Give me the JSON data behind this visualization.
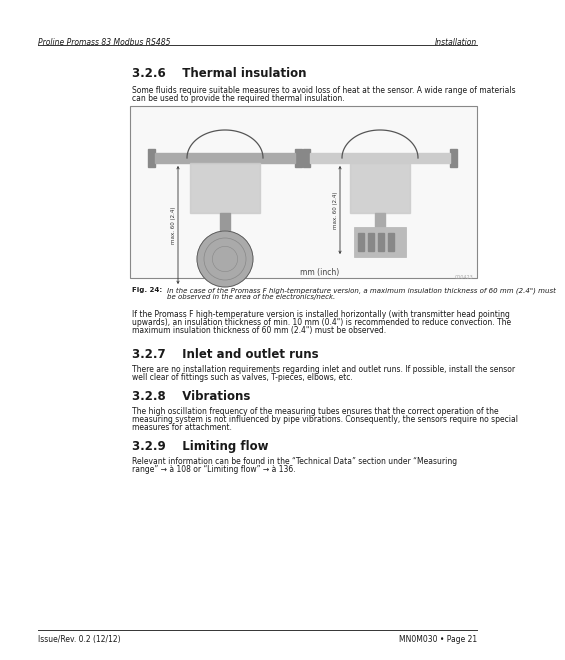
{
  "page_bg": "#ffffff",
  "header_left": "Proline Promass 83 Modbus RS485",
  "header_right": "Installation",
  "footer_left": "Issue/Rev. 0.2 (12/12)",
  "footer_right": "MN0M030 • Page 21",
  "section_326_num": "3.2.6",
  "section_326_title": "    Thermal insulation",
  "section_326_body1": "Some fluids require suitable measures to avoid loss of heat at the sensor. A wide range of materials",
  "section_326_body2": "can be used to provide the required thermal insulation.",
  "fig_caption_label": "Fig. 24:",
  "fig_caption_text1": "In the case of the Promass F high-temperature version, a maximum insulation thickness of 60 mm (2.4\") must",
  "fig_caption_text2": "be observed in the area of the electronics/neck.",
  "para2_1": "If the Promass F high-temperature version is installed horizontally (with transmitter head pointing",
  "para2_2": "upwards), an insulation thickness of min. 10 mm (0.4\") is recommended to reduce convection. The",
  "para2_3": "maximum insulation thickness of 60 mm (2.4\") must be observed.",
  "section_327_num": "3.2.7",
  "section_327_title": "    Inlet and outlet runs",
  "section_327_body1": "There are no installation requirements regarding inlet and outlet runs. If possible, install the sensor",
  "section_327_body2": "well clear of fittings such as valves, T-pieces, elbows, etc.",
  "section_328_num": "3.2.8",
  "section_328_title": "    Vibrations",
  "section_328_body1": "The high oscillation frequency of the measuring tubes ensures that the correct operation of the",
  "section_328_body2": "measuring system is not influenced by pipe vibrations. Consequently, the sensors require no special",
  "section_328_body3": "measures for attachment.",
  "section_329_num": "3.2.9",
  "section_329_title": "    Limiting flow",
  "section_329_body1": "Relevant information can be found in the “Technical Data” section under “Measuring",
  "section_329_body2": "range” → à 108 or “Limiting flow” → à 136.",
  "mm_inch_label": "mm (inch)",
  "dim_label": "max. 60 (2.4)",
  "fig_num": "000423"
}
